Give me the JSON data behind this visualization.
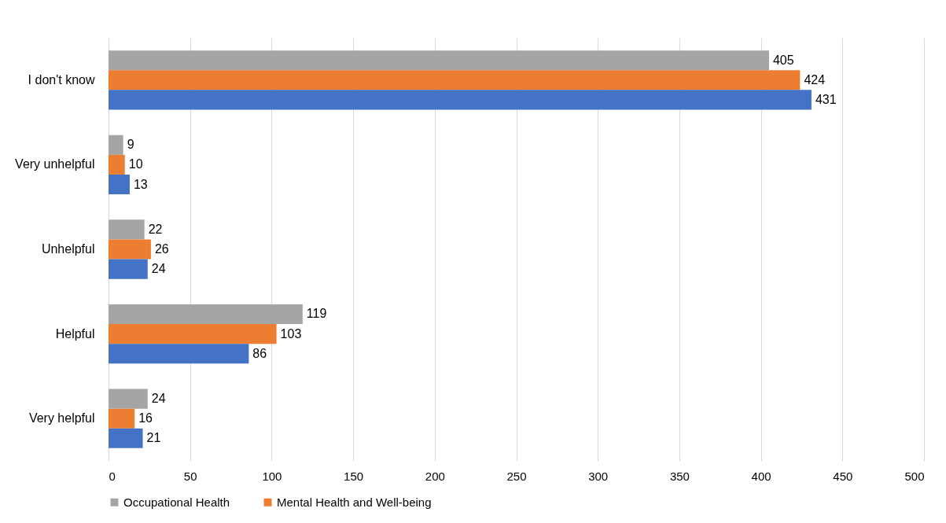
{
  "chart_data": {
    "type": "bar",
    "orientation": "horizontal",
    "categories": [
      "I don't know",
      "Very unhelpful",
      "Unhelpful",
      "Helpful",
      "Very helpful"
    ],
    "series": [
      {
        "name": "Occupational Health",
        "color": "#a5a5a5",
        "values": [
          405,
          9,
          22,
          119,
          24
        ]
      },
      {
        "name": "Mental Health and Well-being",
        "color": "#ed7d31",
        "values": [
          424,
          10,
          26,
          103,
          16
        ]
      },
      {
        "color": "#4472c4",
        "values": [
          431,
          13,
          24,
          86,
          21
        ]
      }
    ],
    "xlim": [
      0,
      500
    ],
    "xticks": [
      0,
      50,
      100,
      150,
      200,
      250,
      300,
      350,
      400,
      450,
      500
    ],
    "grid": "x",
    "legend": "bottom",
    "data_labels": true
  }
}
